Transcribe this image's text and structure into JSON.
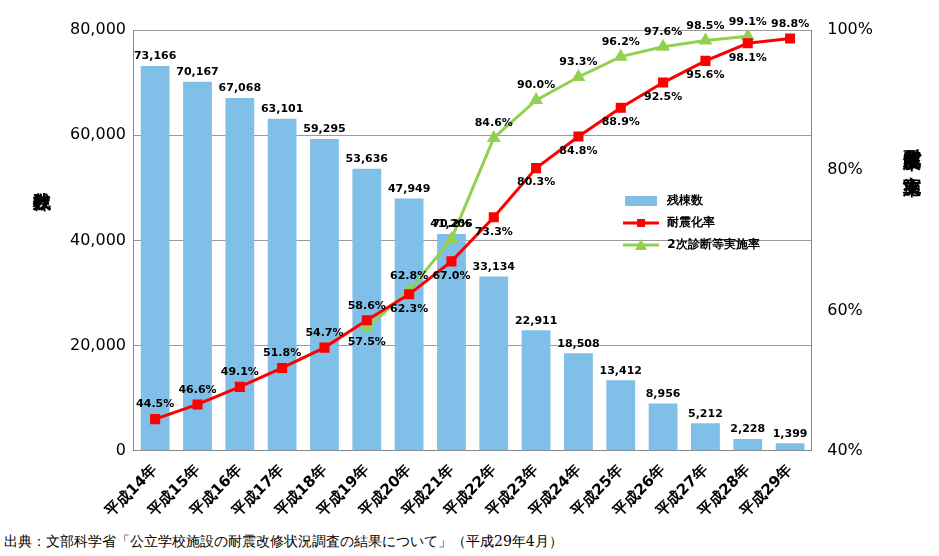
{
  "chart_data": {
    "type": "bar",
    "categories": [
      "平成14年",
      "平成15年",
      "平成16年",
      "平成17年",
      "平成18年",
      "平成19年",
      "平成20年",
      "平成21年",
      "平成22年",
      "平成23年",
      "平成24年",
      "平成25年",
      "平成26年",
      "平成27年",
      "平成28年",
      "平成29年"
    ],
    "series": [
      {
        "name": "残棟数",
        "type": "bar",
        "color": "#80bfe8",
        "values": [
          73166,
          70167,
          67068,
          63101,
          59295,
          53636,
          47949,
          41206,
          33134,
          22911,
          18508,
          13412,
          8956,
          5212,
          2228,
          1399
        ],
        "value_labels": [
          "73,166",
          "70,167",
          "67,068",
          "63,101",
          "59,295",
          "53,636",
          "47,949",
          "41,206",
          "33,134",
          "22,911",
          "18,508",
          "13,412",
          "8,956",
          "5,212",
          "2,228",
          "1,399"
        ]
      },
      {
        "name": "耐震化率",
        "type": "line",
        "color": "#ff0000",
        "marker": "square",
        "axis": "y2",
        "values": [
          44.5,
          46.6,
          49.1,
          51.8,
          54.7,
          58.6,
          62.3,
          67.0,
          73.3,
          80.3,
          84.8,
          88.9,
          92.5,
          95.6,
          98.1,
          98.8
        ],
        "value_labels": [
          "44.5%",
          "46.6%",
          "49.1%",
          "51.8%",
          "54.7%",
          "58.6%",
          "62.3%",
          "67.0%",
          "73.3%",
          "80.3%",
          "84.8%",
          "88.9%",
          "92.5%",
          "95.6%",
          "98.1%",
          "98.8%"
        ]
      },
      {
        "name": "2次診断等実施率",
        "type": "line",
        "color": "#92d050",
        "marker": "triangle",
        "axis": "y2",
        "values": [
          null,
          null,
          null,
          null,
          null,
          57.5,
          62.8,
          70.2,
          84.6,
          90.0,
          93.3,
          96.2,
          97.6,
          98.5,
          99.1,
          null
        ],
        "value_labels": [
          null,
          null,
          null,
          null,
          null,
          "57.5%",
          "62.8%",
          "70.2%",
          "84.6%",
          "90.0%",
          "93.3%",
          "96.2%",
          "97.6%",
          "98.5%",
          "99.1%",
          null
        ]
      }
    ],
    "y_label": "残棟数",
    "y2_label": "耐震化率及び実施率",
    "ylim": [
      0,
      80000
    ],
    "yticks": [
      0,
      {
        "value": 20000,
        "label": "20,000"
      },
      {
        "value": 40000,
        "label": "40,000"
      },
      {
        "value": 60000,
        "label": "60,000"
      },
      {
        "value": 80000,
        "label": "80,000"
      }
    ],
    "y2lim": [
      40,
      100
    ],
    "y2ticks": [
      {
        "value": 40,
        "label": "40%"
      },
      {
        "value": 60,
        "label": "60%"
      },
      {
        "value": 80,
        "label": "80%"
      },
      {
        "value": 100,
        "label": "100%"
      }
    ],
    "grid": true,
    "legend": "right",
    "data_labels": true,
    "source": "出典：文部科学省「公立学校施設の耐震改修状況調査の結果について」（平成29年4月）"
  }
}
